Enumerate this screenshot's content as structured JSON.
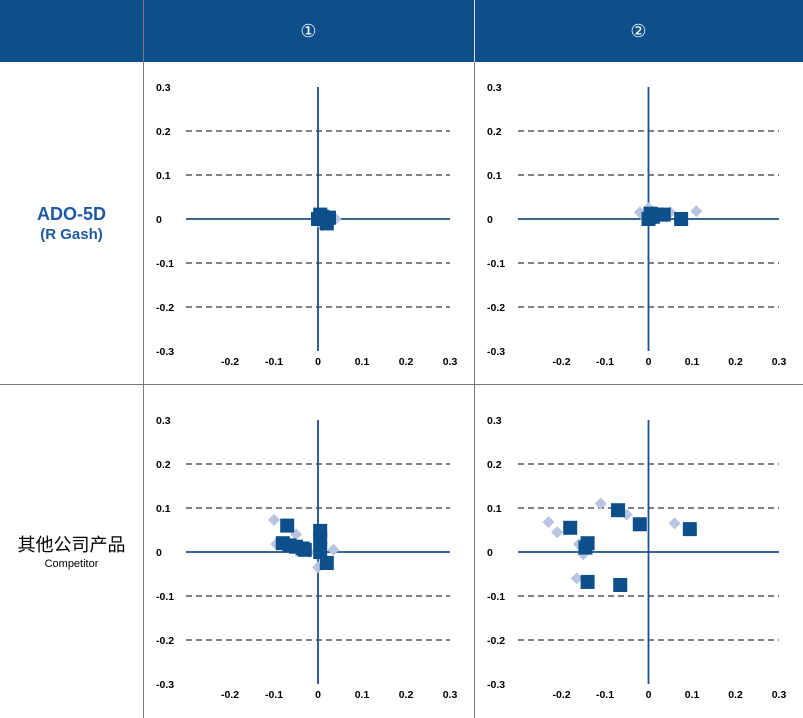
{
  "headers": [
    "①",
    "②"
  ],
  "rows": [
    {
      "label_main": "ADO-5D",
      "label_sub": "(R Gash)"
    },
    {
      "label_main": "其他公司产品",
      "label_sub": "Competitor"
    }
  ],
  "colors": {
    "header_bg": "#0c4f8a",
    "axis": "#1c4f8c",
    "square": "#0c4f8a",
    "diamond": "#b8c4e0",
    "label_blue": "#1f5aa6"
  },
  "chart_data": [
    {
      "type": "scatter",
      "row": 0,
      "col": 0,
      "xlim": [
        -0.3,
        0.3
      ],
      "ylim": [
        -0.3,
        0.3
      ],
      "xticks": [
        "-0.3",
        "-0.2",
        "-0.1",
        "0",
        "0.1",
        "0.2",
        "0.3"
      ],
      "yticks": [
        "0.3",
        "0.2",
        "0.1",
        "0",
        "-0.1",
        "-0.2",
        "-0.3"
      ],
      "grid": "dashed horizontal",
      "series": [
        {
          "marker": "diamond",
          "points": [
            [
              0.0,
              0.005
            ],
            [
              0.01,
              -0.015
            ],
            [
              0.04,
              0.0
            ],
            [
              0.02,
              0.01
            ],
            [
              0.0,
              -0.005
            ],
            [
              0.03,
              -0.008
            ]
          ]
        },
        {
          "marker": "square",
          "points": [
            [
              0.0,
              0.0
            ],
            [
              0.005,
              0.01
            ],
            [
              0.01,
              0.005
            ],
            [
              0.02,
              -0.01
            ],
            [
              0.015,
              0.0
            ],
            [
              0.025,
              0.003
            ]
          ]
        }
      ]
    },
    {
      "type": "scatter",
      "row": 0,
      "col": 1,
      "xlim": [
        -0.3,
        0.3
      ],
      "ylim": [
        -0.3,
        0.3
      ],
      "xticks": [
        "-0.3",
        "-0.2",
        "-0.1",
        "0",
        "0.1",
        "0.2",
        "0.3"
      ],
      "yticks": [
        "0.3",
        "0.2",
        "0.1",
        "0",
        "-0.1",
        "-0.2",
        "-0.3"
      ],
      "grid": "dashed horizontal",
      "series": [
        {
          "marker": "diamond",
          "points": [
            [
              -0.02,
              0.015
            ],
            [
              0.0,
              0.025
            ],
            [
              0.01,
              0.018
            ],
            [
              0.03,
              0.01
            ],
            [
              0.05,
              0.015
            ],
            [
              0.11,
              0.018
            ],
            [
              -0.01,
              0.005
            ],
            [
              0.04,
              0.005
            ]
          ]
        },
        {
          "marker": "square",
          "points": [
            [
              0.0,
              0.0
            ],
            [
              0.01,
              0.005
            ],
            [
              0.02,
              0.01
            ],
            [
              0.035,
              0.01
            ],
            [
              0.075,
              0.0
            ],
            [
              0.005,
              0.012
            ]
          ]
        }
      ]
    },
    {
      "type": "scatter",
      "row": 1,
      "col": 0,
      "xlim": [
        -0.3,
        0.3
      ],
      "ylim": [
        -0.3,
        0.3
      ],
      "xticks": [
        "-0.3",
        "-0.2",
        "-0.1",
        "0",
        "0.1",
        "0.2",
        "0.3"
      ],
      "yticks": [
        "0.3",
        "0.2",
        "0.1",
        "0",
        "-0.1",
        "-0.2",
        "-0.3"
      ],
      "grid": "dashed horizontal",
      "series": [
        {
          "marker": "diamond",
          "points": [
            [
              -0.1,
              0.073
            ],
            [
              -0.095,
              0.018
            ],
            [
              -0.05,
              0.04
            ],
            [
              0.0,
              -0.035
            ],
            [
              0.035,
              0.005
            ],
            [
              -0.02,
              0.0
            ],
            [
              0.01,
              0.02
            ]
          ]
        },
        {
          "marker": "square",
          "points": [
            [
              -0.07,
              0.06
            ],
            [
              -0.08,
              0.02
            ],
            [
              -0.065,
              0.015
            ],
            [
              -0.05,
              0.012
            ],
            [
              -0.035,
              0.008
            ],
            [
              -0.03,
              0.005
            ],
            [
              0.005,
              0.048
            ],
            [
              0.005,
              0.03
            ],
            [
              0.005,
              0.0
            ],
            [
              0.02,
              -0.025
            ]
          ]
        }
      ]
    },
    {
      "type": "scatter",
      "row": 1,
      "col": 1,
      "xlim": [
        -0.3,
        0.3
      ],
      "ylim": [
        -0.3,
        0.3
      ],
      "xticks": [
        "-0.3",
        "-0.2",
        "-0.1",
        "0",
        "0.1",
        "0.2",
        "0.3"
      ],
      "yticks": [
        "0.3",
        "0.2",
        "0.1",
        "0",
        "-0.1",
        "-0.2",
        "-0.3"
      ],
      "grid": "dashed horizontal",
      "series": [
        {
          "marker": "diamond",
          "points": [
            [
              -0.23,
              0.068
            ],
            [
              -0.21,
              0.045
            ],
            [
              -0.16,
              0.018
            ],
            [
              -0.15,
              -0.005
            ],
            [
              -0.11,
              0.11
            ],
            [
              -0.165,
              -0.06
            ],
            [
              -0.05,
              0.085
            ],
            [
              0.06,
              0.065
            ]
          ]
        },
        {
          "marker": "square",
          "points": [
            [
              -0.18,
              0.055
            ],
            [
              -0.14,
              0.02
            ],
            [
              -0.145,
              0.01
            ],
            [
              -0.14,
              -0.068
            ],
            [
              -0.07,
              0.095
            ],
            [
              -0.02,
              0.063
            ],
            [
              -0.065,
              -0.075
            ],
            [
              0.095,
              0.052
            ]
          ]
        }
      ]
    }
  ]
}
